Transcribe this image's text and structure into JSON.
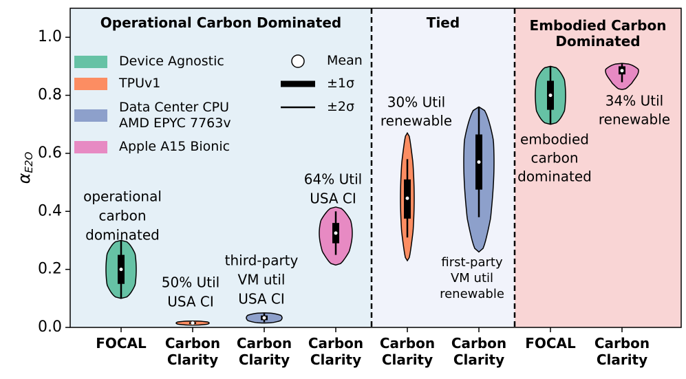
{
  "chart_data": {
    "type": "violin",
    "y_label": "α",
    "y_label_subscript": "E2O",
    "ylim": [
      0,
      1.1
    ],
    "yticks": [
      {
        "value": 0,
        "label": "0.0"
      },
      0.2,
      0.4,
      0.6,
      0.8,
      {
        "value": 1,
        "label": "1.0"
      }
    ],
    "categories": [
      "FOCAL",
      "Carbon\nClarity",
      "Carbon\nClarity",
      "Carbon\nClarity",
      "Carbon\nClarity",
      "Carbon\nClarity",
      "FOCAL",
      "Carbon\nClarity"
    ],
    "regions": [
      {
        "title": "Operational Carbon Dominated",
        "color": "#e5f0f7"
      },
      {
        "title": "Tied",
        "color": "#f1f3fb"
      },
      {
        "title": "Embodied Carbon\nDominated",
        "color": "#f9d5d5"
      }
    ],
    "series": [
      {
        "name": "Device Agnostic",
        "color": "#66c2a5"
      },
      {
        "name": "TPUv1",
        "color": "#fc8d62"
      },
      {
        "name": "Data Center CPU\nAMD EPYC 7763v",
        "color": "#8da0cb"
      },
      {
        "name": "Apple A15 Bionic",
        "color": "#e78ac3"
      }
    ],
    "stat_legend": [
      "Mean",
      "±1σ",
      "±2σ"
    ],
    "violins": [
      {
        "series": 0,
        "mean": 0.2,
        "sd1": [
          0.15,
          0.25
        ],
        "sd2": [
          0.1,
          0.3
        ],
        "range": [
          0.1,
          0.3
        ]
      },
      {
        "series": 1,
        "mean": 0.015,
        "sd1": [
          0.012,
          0.018
        ],
        "sd2": [
          0.009,
          0.021
        ],
        "range": [
          0.008,
          0.022
        ]
      },
      {
        "series": 2,
        "mean": 0.033,
        "sd1": [
          0.025,
          0.041
        ],
        "sd2": [
          0.018,
          0.048
        ],
        "range": [
          0.015,
          0.05
        ]
      },
      {
        "series": 3,
        "mean": 0.325,
        "sd1": [
          0.29,
          0.36
        ],
        "sd2": [
          0.25,
          0.4
        ],
        "range": [
          0.215,
          0.415
        ]
      },
      {
        "series": 1,
        "mean": 0.445,
        "sd1": [
          0.375,
          0.51
        ],
        "sd2": [
          0.31,
          0.58
        ],
        "range": [
          0.23,
          0.67
        ]
      },
      {
        "series": 2,
        "mean": 0.57,
        "sd1": [
          0.475,
          0.665
        ],
        "sd2": [
          0.38,
          0.76
        ],
        "range": [
          0.26,
          0.76
        ]
      },
      {
        "series": 0,
        "mean": 0.8,
        "sd1": [
          0.75,
          0.85
        ],
        "sd2": [
          0.7,
          0.9
        ],
        "range": [
          0.7,
          0.9
        ]
      },
      {
        "series": 3,
        "mean": 0.885,
        "sd1": [
          0.872,
          0.9
        ],
        "sd2": [
          0.845,
          0.91
        ],
        "range": [
          0.82,
          0.91
        ]
      }
    ],
    "annotations": [
      [
        "operational",
        "carbon",
        "dominated"
      ],
      [
        "50% Util",
        "USA CI"
      ],
      [
        "third-party",
        "VM util",
        "USA CI"
      ],
      [
        "64% Util",
        "USA CI"
      ],
      [
        "30% Util",
        "renewable"
      ],
      [
        "first-party",
        "VM util",
        "renewable"
      ],
      [
        "embodied",
        "carbon",
        "dominated"
      ],
      [
        "34% Util",
        "renewable"
      ]
    ]
  }
}
